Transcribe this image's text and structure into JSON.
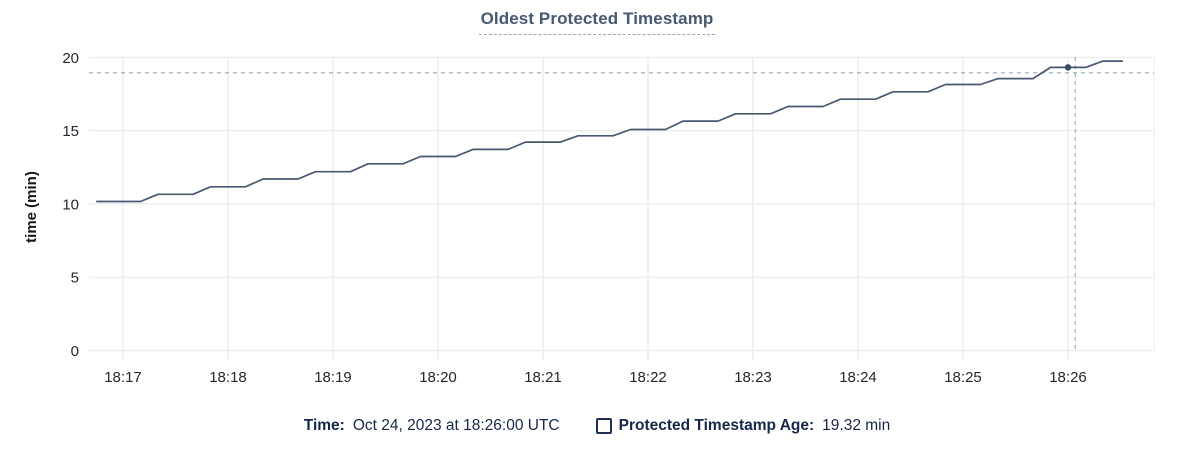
{
  "title": "Oldest Protected Timestamp",
  "tooltip": {
    "time_label": "Time:",
    "time_value": "Oct 24, 2023 at 18:26:00 UTC",
    "series_label": "Protected Timestamp Age:",
    "series_value": "19.32 min"
  },
  "chart_data": {
    "type": "line",
    "title": "Oldest Protected Timestamp",
    "xlabel": "",
    "ylabel": "time (min)",
    "ylim": [
      0,
      20
    ],
    "yticks": [
      0,
      5,
      10,
      15,
      20
    ],
    "xticks": [
      "18:17",
      "18:18",
      "18:19",
      "18:20",
      "18:21",
      "18:22",
      "18:23",
      "18:24",
      "18:25",
      "18:26"
    ],
    "grid": true,
    "legend_position": "bottom",
    "x_unit": "minutes after 18:17",
    "series": [
      {
        "name": "Protected Timestamp Age",
        "x_minutes": [
          -0.25,
          0.167,
          0.333,
          0.667,
          0.833,
          1.167,
          1.333,
          1.667,
          1.833,
          2.167,
          2.333,
          2.667,
          2.833,
          3.167,
          3.333,
          3.667,
          3.833,
          4.167,
          4.333,
          4.667,
          4.833,
          5.167,
          5.333,
          5.667,
          5.833,
          6.167,
          6.333,
          6.667,
          6.833,
          7.167,
          7.333,
          7.667,
          7.833,
          8.167,
          8.333,
          8.667,
          8.833,
          9.167,
          9.333,
          9.517
        ],
        "values": [
          10.17,
          10.17,
          10.66,
          10.66,
          11.17,
          11.17,
          11.7,
          11.7,
          12.2,
          12.2,
          12.74,
          12.74,
          13.24,
          13.24,
          13.72,
          13.72,
          14.22,
          14.22,
          14.65,
          14.65,
          15.08,
          15.08,
          15.65,
          15.65,
          16.15,
          16.15,
          16.65,
          16.65,
          17.15,
          17.15,
          17.65,
          17.65,
          18.15,
          18.15,
          18.55,
          18.55,
          19.32,
          19.32,
          19.75,
          19.75
        ]
      }
    ],
    "hover_point": {
      "time": "18:26:00",
      "x_minutes": 9.0,
      "value": 19.32
    },
    "crosshair": {
      "x_minutes": 9.07,
      "value_min": 18.95
    }
  },
  "colors": {
    "background": "#ffffff",
    "line": "#485870",
    "dot": "#3b4a63",
    "crosshair": "#a6b8c0",
    "grid": "#ececec",
    "grid_edge": "#f2f2f2",
    "axis_text": "#24272e",
    "axis_title_text": "#15171c",
    "title_text": "#475872",
    "title_underline": "#9aa5b5",
    "footer_text": "#152849",
    "checkbox_border": "#1c3150"
  }
}
